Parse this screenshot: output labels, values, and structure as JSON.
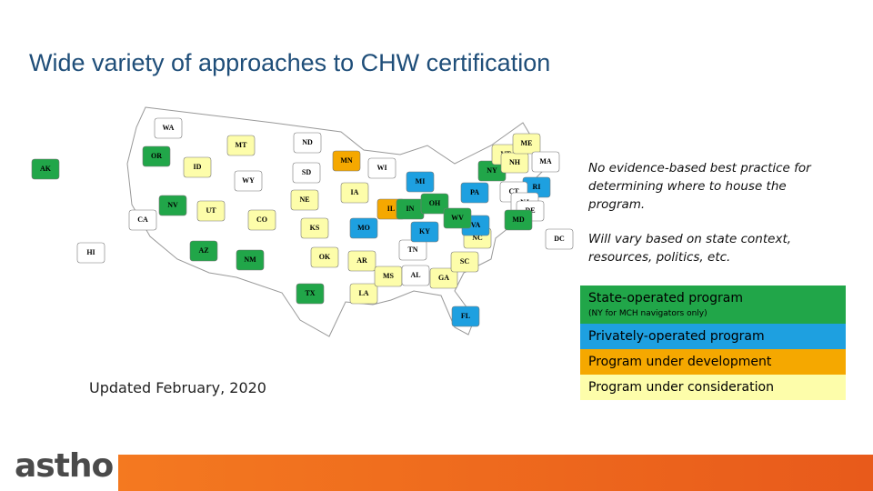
{
  "header": {
    "title": "Wide variety of approaches to CHW certification"
  },
  "map": {
    "states": [
      {
        "label": "WA",
        "color": "#ffffff"
      },
      {
        "label": "OR",
        "color": "#21a649"
      },
      {
        "label": "CA",
        "color": "#ffffff"
      },
      {
        "label": "ID",
        "color": "#fdfdaa"
      },
      {
        "label": "NV",
        "color": "#21a649"
      },
      {
        "label": "MT",
        "color": "#fdfdaa"
      },
      {
        "label": "WY",
        "color": "#ffffff"
      },
      {
        "label": "UT",
        "color": "#fdfdaa"
      },
      {
        "label": "AZ",
        "color": "#21a649"
      },
      {
        "label": "CO",
        "color": "#fdfdaa"
      },
      {
        "label": "NM",
        "color": "#21a649"
      },
      {
        "label": "ND",
        "color": "#ffffff"
      },
      {
        "label": "SD",
        "color": "#ffffff"
      },
      {
        "label": "NE",
        "color": "#fdfdaa"
      },
      {
        "label": "KS",
        "color": "#fdfdaa"
      },
      {
        "label": "OK",
        "color": "#fdfdaa"
      },
      {
        "label": "TX",
        "color": "#21a649"
      },
      {
        "label": "MN",
        "color": "#f5a800"
      },
      {
        "label": "IA",
        "color": "#fdfdaa"
      },
      {
        "label": "MO",
        "color": "#1ea0e0"
      },
      {
        "label": "AR",
        "color": "#fdfdaa"
      },
      {
        "label": "LA",
        "color": "#fdfdaa"
      },
      {
        "label": "WI",
        "color": "#ffffff"
      },
      {
        "label": "IL",
        "color": "#f5a800"
      },
      {
        "label": "MS",
        "color": "#fdfdaa"
      },
      {
        "label": "AL",
        "color": "#ffffff"
      },
      {
        "label": "TN",
        "color": "#ffffff"
      },
      {
        "label": "KY",
        "color": "#1ea0e0"
      },
      {
        "label": "IN",
        "color": "#21a649"
      },
      {
        "label": "MI",
        "color": "#1ea0e0"
      },
      {
        "label": "OH",
        "color": "#21a649"
      },
      {
        "label": "GA",
        "color": "#fdfdaa"
      },
      {
        "label": "FL",
        "color": "#1ea0e0"
      },
      {
        "label": "SC",
        "color": "#fdfdaa"
      },
      {
        "label": "NC",
        "color": "#fdfdaa"
      },
      {
        "label": "VA",
        "color": "#1ea0e0"
      },
      {
        "label": "WV",
        "color": "#21a649"
      },
      {
        "label": "PA",
        "color": "#1ea0e0"
      },
      {
        "label": "NY",
        "color": "#21a649"
      },
      {
        "label": "VT",
        "color": "#fdfdaa"
      },
      {
        "label": "NH",
        "color": "#fdfdaa"
      },
      {
        "label": "ME",
        "color": "#fdfdaa"
      },
      {
        "label": "MA",
        "color": "#ffffff"
      },
      {
        "label": "RI",
        "color": "#1ea0e0"
      },
      {
        "label": "CT",
        "color": "#ffffff"
      },
      {
        "label": "NJ",
        "color": "#ffffff"
      },
      {
        "label": "DE",
        "color": "#ffffff"
      },
      {
        "label": "MD",
        "color": "#21a649"
      },
      {
        "label": "DC",
        "color": "#ffffff"
      },
      {
        "label": "AK",
        "color": "#21a649"
      },
      {
        "label": "HI",
        "color": "#ffffff"
      }
    ]
  },
  "notes": [
    "No evidence-based best practice for determining where to house the program.",
    "Will vary based on state context, resources, politics, etc."
  ],
  "legend": [
    {
      "label": "State-operated program",
      "sublabel": "(NY for MCH navigators only)",
      "color": "#21a649"
    },
    {
      "label": "Privately-operated program",
      "color": "#1ea0e0"
    },
    {
      "label": "Program under development",
      "color": "#f5a800"
    },
    {
      "label": "Program under consideration",
      "color": "#fdfdaa"
    }
  ],
  "updated": "Updated February, 2020",
  "logo": "astho"
}
